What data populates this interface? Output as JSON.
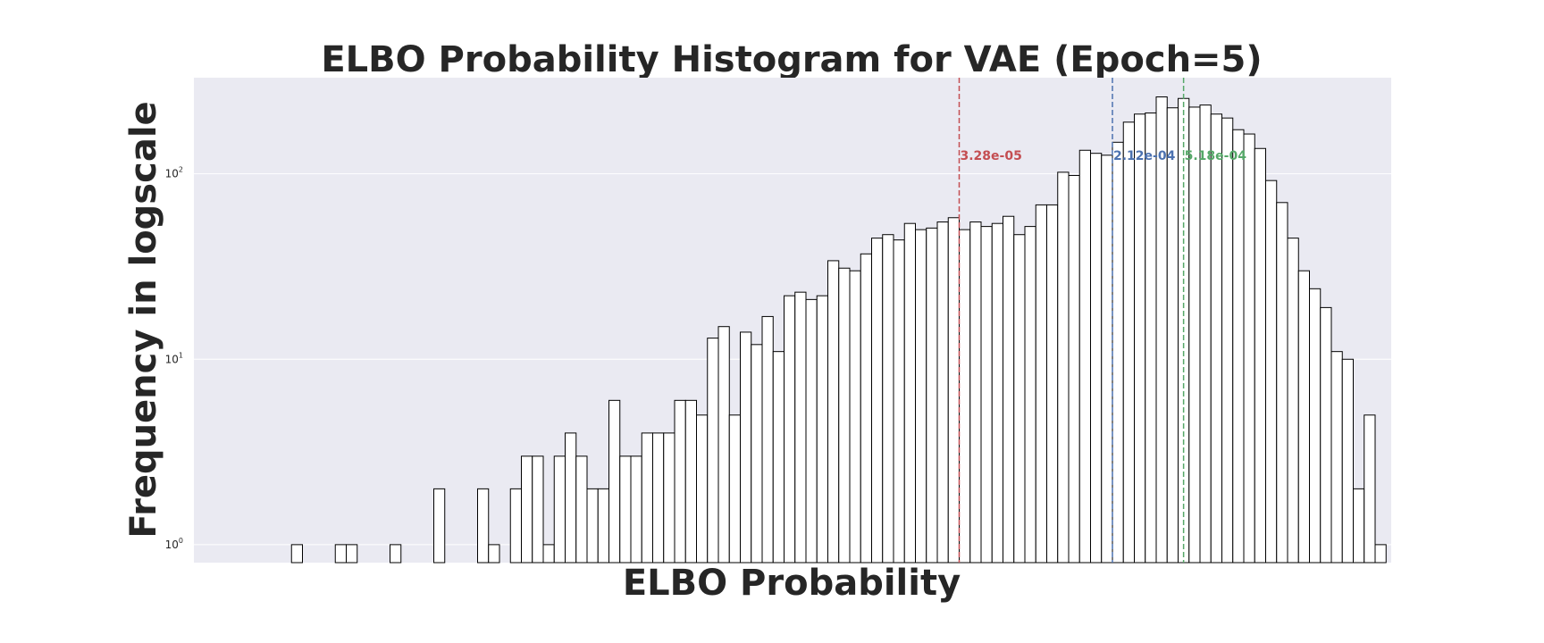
{
  "chart_data": {
    "type": "bar",
    "subtype": "histogram",
    "title": "ELBO Probability Histogram for VAE (Epoch=5)",
    "xlabel": "ELBO Probability",
    "ylabel": "Frequency in logscale",
    "yscale": "log",
    "ylim": [
      0.8,
      330
    ],
    "y_ticks": [
      {
        "base": "10",
        "exp": "0",
        "value": 1
      },
      {
        "base": "10",
        "exp": "1",
        "value": 10
      },
      {
        "base": "10",
        "exp": "2",
        "value": 100
      }
    ],
    "x_tick_labels_shown": false,
    "grid": true,
    "background": "#eaeaf2",
    "bar_fill": "#ffffff",
    "bar_edge": "#000000",
    "counts": [
      0,
      0,
      0,
      0,
      0,
      1,
      0,
      0,
      0,
      1,
      1,
      0,
      0,
      0,
      1,
      0,
      0,
      0,
      2,
      0,
      0,
      0,
      2,
      1,
      0,
      2,
      3,
      3,
      1,
      3,
      4,
      3,
      2,
      2,
      6,
      3,
      3,
      4,
      4,
      4,
      6,
      6,
      5,
      13,
      15,
      5,
      14,
      12,
      17,
      11,
      22,
      23,
      21,
      22,
      34,
      31,
      30,
      37,
      45,
      47,
      44,
      54,
      50,
      51,
      55,
      58,
      50,
      55,
      52,
      54,
      59,
      47,
      52,
      68,
      68,
      102,
      98,
      134,
      129,
      126,
      148,
      190,
      210,
      213,
      260,
      227,
      255,
      229,
      235,
      210,
      200,
      173,
      164,
      137,
      92,
      70,
      45,
      30,
      24,
      19,
      11,
      10,
      2,
      5,
      1,
      0
    ],
    "vertical_lines": [
      {
        "label": "3.28e-05",
        "color": "#c44e52",
        "bin_edge": 66
      },
      {
        "label": "2.12e-04",
        "color": "#4c72b0",
        "bin_edge": 80
      },
      {
        "label": "5.18e-04",
        "color": "#55a868",
        "bin_edge": 86.5
      }
    ]
  }
}
